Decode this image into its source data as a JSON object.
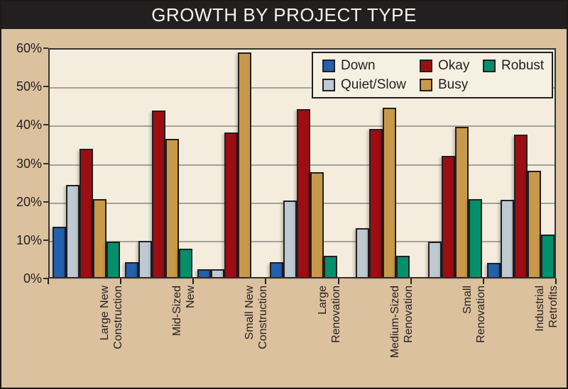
{
  "title": "GROWTH BY PROJECT TYPE",
  "colors": {
    "title_bar": "#231f20",
    "outer_background": "#dbc19e",
    "plot_background": "#f4ecdd",
    "gridline": "#a5a29a",
    "bar_outline": "#231f20",
    "legend_background": "#f6f0e2"
  },
  "chart_data": {
    "type": "bar",
    "title": "GROWTH BY PROJECT TYPE",
    "categories": [
      "Large New\nConstruction",
      "Mid-Sized\nNew",
      "Small New\nConstruction",
      "Large\nRenovation",
      "Medium-Sized\nRenovation",
      "Small\nRenovation",
      "Industrial\nRetrofits"
    ],
    "series": [
      {
        "name": "Down",
        "color": "#2261ad",
        "values": [
          13.1,
          3.9,
          2.0,
          3.8,
          0,
          0,
          3.6
        ]
      },
      {
        "name": "Quiet/Slow",
        "color": "#bfc9d2",
        "values": [
          24.0,
          9.4,
          2.1,
          20.0,
          12.8,
          9.2,
          20.2
        ]
      },
      {
        "name": "Okay",
        "color": "#9c0e13",
        "values": [
          33.5,
          43.4,
          37.7,
          43.8,
          38.6,
          31.5,
          37.1
        ]
      },
      {
        "name": "Busy",
        "color": "#c9994a",
        "values": [
          20.3,
          36.0,
          58.6,
          27.4,
          44.2,
          39.2,
          27.7
        ]
      },
      {
        "name": "Robust",
        "color": "#028f6b",
        "values": [
          9.3,
          7.4,
          0,
          5.5,
          5.5,
          20.3,
          11.0
        ]
      }
    ],
    "xlabel": "",
    "ylabel": "",
    "ylim": [
      0,
      60
    ],
    "ytick_labels": [
      "0%",
      "10%",
      "20%",
      "30%",
      "40%",
      "50%",
      "60%"
    ],
    "grid": true,
    "legend_position": "top-right",
    "legend_rows": [
      [
        "Down",
        "Okay",
        "Robust"
      ],
      [
        "Quiet/Slow",
        "Busy"
      ]
    ]
  }
}
